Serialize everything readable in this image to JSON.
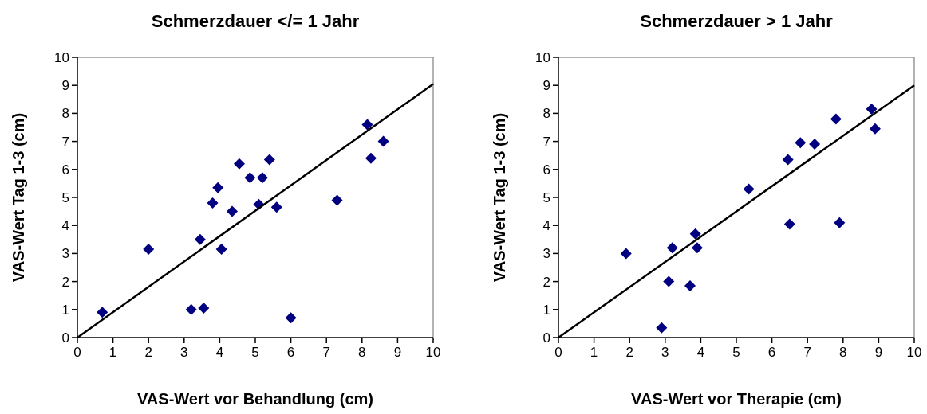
{
  "chart_data": [
    {
      "type": "scatter",
      "title": "Schmerzdauer </= 1 Jahr",
      "xlabel": "VAS-Wert vor Behandlung (cm)",
      "ylabel": "VAS-Wert Tag 1-3 (cm)",
      "xlim": [
        0,
        10
      ],
      "ylim": [
        0,
        10
      ],
      "xticks": [
        0,
        1,
        2,
        3,
        4,
        5,
        6,
        7,
        8,
        9,
        10
      ],
      "yticks": [
        0,
        1,
        2,
        3,
        4,
        5,
        6,
        7,
        8,
        9,
        10
      ],
      "grid": false,
      "marker": "diamond",
      "series": [
        {
          "color": "#000080",
          "x": [
            0.7,
            2.0,
            3.2,
            3.55,
            3.45,
            3.8,
            3.95,
            4.05,
            4.35,
            4.55,
            4.85,
            5.1,
            5.2,
            5.4,
            5.6,
            6.0,
            7.3,
            8.15,
            8.25,
            8.6
          ],
          "values": [
            0.9,
            3.15,
            1.0,
            1.05,
            3.5,
            4.8,
            5.35,
            3.15,
            4.5,
            6.2,
            5.7,
            4.75,
            5.7,
            6.35,
            4.65,
            0.7,
            4.9,
            7.6,
            6.4,
            7.0
          ]
        },
        {
          "type": "line",
          "color": "#000000",
          "line_style": "solid",
          "marker": "none",
          "x": [
            0,
            10
          ],
          "values": [
            0,
            9.05
          ]
        }
      ]
    },
    {
      "type": "scatter",
      "title": "Schmerzdauer > 1 Jahr",
      "xlabel": "VAS-Wert vor Therapie (cm)",
      "ylabel": "VAS-Wert Tag 1-3 (cm)",
      "xlim": [
        0,
        10
      ],
      "ylim": [
        0,
        10
      ],
      "xticks": [
        0,
        1,
        2,
        3,
        4,
        5,
        6,
        7,
        8,
        9,
        10
      ],
      "yticks": [
        0,
        1,
        2,
        3,
        4,
        5,
        6,
        7,
        8,
        9,
        10
      ],
      "grid": false,
      "marker": "diamond",
      "series": [
        {
          "color": "#000080",
          "x": [
            1.9,
            2.9,
            3.1,
            3.2,
            3.7,
            3.85,
            3.9,
            5.35,
            6.45,
            6.5,
            6.8,
            7.2,
            7.8,
            7.9,
            8.8,
            8.9
          ],
          "values": [
            3.0,
            0.35,
            2.0,
            3.2,
            1.85,
            3.7,
            3.2,
            5.3,
            6.35,
            4.05,
            6.95,
            6.9,
            7.8,
            4.1,
            8.15,
            7.45
          ]
        },
        {
          "type": "line",
          "color": "#000000",
          "line_style": "solid",
          "marker": "none",
          "x": [
            0,
            10
          ],
          "values": [
            0,
            9.0
          ]
        }
      ]
    }
  ]
}
